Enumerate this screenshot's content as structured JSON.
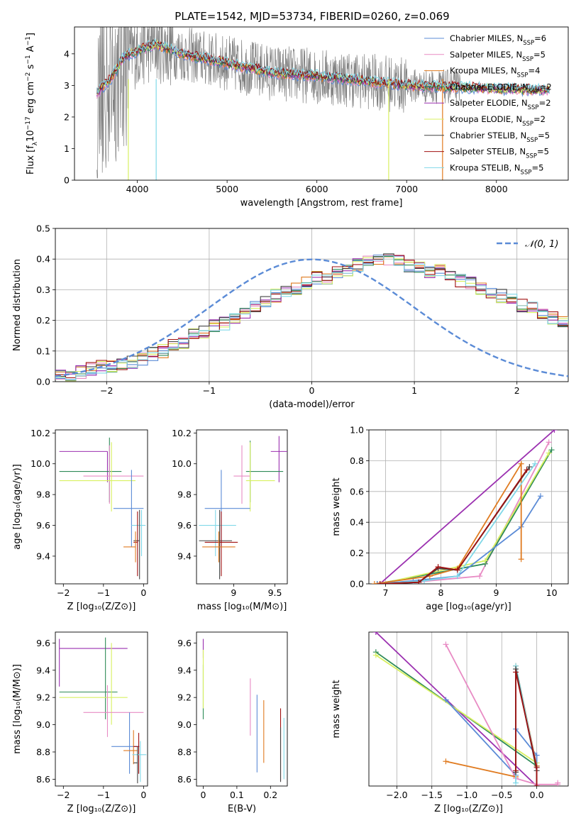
{
  "figure": {
    "title": "PLATE=1542, MJD=53734, FIBERID=0260, z=0.069"
  },
  "colors": {
    "data_spectrum": "#808080",
    "Chabrier MILES": "#5b8bd6",
    "Salpeter MILES": "#e88bc4",
    "Kroupa MILES": "#e07b20",
    "Chabrier ELODIE": "#2e8b57",
    "Salpeter ELODIE": "#9b30b0",
    "Kroupa ELODIE": "#d8f060",
    "Chabrier STELIB": "#444444",
    "Salpeter STELIB": "#a01010",
    "Kroupa STELIB": "#80d8e8",
    "normal_curve": "#5b8bd6"
  },
  "chart_data": [
    {
      "id": "spectrum",
      "type": "line",
      "xlabel": "wavelength [Angstrom, rest frame]",
      "ylabel_parts": [
        "Flux [f",
        "λ",
        "10",
        "−17",
        " erg cm",
        "−2",
        " s",
        "−1",
        " A",
        "−1",
        "]"
      ],
      "xlim": [
        3300,
        8800
      ],
      "ylim": [
        0,
        4.85
      ],
      "xticks": [
        4000,
        5000,
        6000,
        7000,
        8000
      ],
      "yticks": [
        0,
        1,
        2,
        3,
        4
      ],
      "legend_position": "upper-right",
      "legend": [
        {
          "label": "Chabrier MILES, N",
          "sub": "SSP",
          "suffix": "=6"
        },
        {
          "label": "Salpeter MILES, N",
          "sub": "SSP",
          "suffix": "=5"
        },
        {
          "label": "Kroupa MILES, N",
          "sub": "SSP",
          "suffix": "=4"
        },
        {
          "label": "Chabrier ELODIE, N",
          "sub": "SSP",
          "suffix": "=2"
        },
        {
          "label": "Salpeter ELODIE, N",
          "sub": "SSP",
          "suffix": "=2"
        },
        {
          "label": "Kroupa ELODIE, N",
          "sub": "SSP",
          "suffix": "=2"
        },
        {
          "label": "Chabrier STELIB, N",
          "sub": "SSP",
          "suffix": "=5"
        },
        {
          "label": "Salpeter STELIB, N",
          "sub": "SSP",
          "suffix": "=5"
        },
        {
          "label": "Kroupa STELIB, N",
          "sub": "SSP",
          "suffix": "=5"
        }
      ],
      "continuum_x": [
        3550,
        3700,
        3850,
        4000,
        4200,
        4500,
        5000,
        5500,
        6000,
        6500,
        7000,
        7500,
        8000,
        8500
      ],
      "continuum_y": [
        2.75,
        3.2,
        3.9,
        4.1,
        4.3,
        4.0,
        3.7,
        3.4,
        3.3,
        3.15,
        3.0,
        2.95,
        2.9,
        2.85
      ]
    },
    {
      "id": "residuals",
      "type": "step",
      "xlabel": "(data-model)/error",
      "ylabel": "Normed distribution",
      "xlim": [
        -2.5,
        2.5
      ],
      "ylim": [
        0,
        0.5
      ],
      "xticks": [
        -2,
        -1,
        0,
        1,
        2
      ],
      "yticks": [
        0.0,
        0.1,
        0.2,
        0.3,
        0.4,
        0.5
      ],
      "grid": true,
      "legend_position": "upper-right",
      "curve_label": "𝒩(0, 1)",
      "bin_width": 0.1,
      "bin_start": -2.5,
      "base_values": [
        0.03,
        0.02,
        0.03,
        0.04,
        0.05,
        0.05,
        0.06,
        0.065,
        0.07,
        0.09,
        0.1,
        0.12,
        0.13,
        0.15,
        0.16,
        0.18,
        0.19,
        0.2,
        0.22,
        0.24,
        0.26,
        0.28,
        0.3,
        0.3,
        0.32,
        0.34,
        0.34,
        0.36,
        0.36,
        0.38,
        0.4,
        0.4,
        0.4,
        0.39,
        0.38,
        0.37,
        0.36,
        0.36,
        0.34,
        0.33,
        0.32,
        0.3,
        0.29,
        0.28,
        0.27,
        0.25,
        0.24,
        0.22,
        0.21,
        0.2,
        0.19,
        0.18,
        0.17,
        0.16,
        0.15,
        0.14,
        0.13,
        0.12,
        0.11,
        0.1,
        0.1,
        0.09,
        0.08,
        0.07,
        0.07,
        0.06,
        0.05,
        0.05,
        0.05,
        0.04,
        0.04,
        0.04,
        0.04,
        0.03,
        0.03
      ]
    },
    {
      "id": "age_vs_Z",
      "type": "errorbar",
      "xlabel": "Z [log₁₀(Z/Z⊙)]",
      "ylabel": "age  [log₁₀(age/yr)]",
      "xlim": [
        -2.2,
        0.1
      ],
      "ylim": [
        9.22,
        10.22
      ],
      "xticks": [
        -2,
        -1,
        0
      ],
      "yticks": [
        9.4,
        9.6,
        9.8,
        10.0,
        10.2
      ],
      "points": [
        {
          "model": "Salpeter ELODIE",
          "x": -0.9,
          "xerr": [
            1.2,
            0.0
          ],
          "y": 10.08,
          "yerr": [
            0.2,
            0.0
          ]
        },
        {
          "model": "Chabrier ELODIE",
          "x": -0.85,
          "xerr": [
            1.25,
            0.3
          ],
          "y": 9.95,
          "yerr": [
            0.2,
            0.22
          ]
        },
        {
          "model": "Salpeter MILES",
          "x": -0.85,
          "xerr": [
            0.65,
            0.85
          ],
          "y": 9.92,
          "yerr": [
            0.18,
            0.2
          ]
        },
        {
          "model": "Kroupa ELODIE",
          "x": -0.8,
          "xerr": [
            1.3,
            0.6
          ],
          "y": 9.89,
          "yerr": [
            0.2,
            0.25
          ]
        },
        {
          "model": "Chabrier MILES",
          "x": -0.3,
          "xerr": [
            0.45,
            0.3
          ],
          "y": 9.71,
          "yerr": [
            0.25,
            0.25
          ]
        },
        {
          "model": "Kroupa STELIB",
          "x": -0.05,
          "xerr": [
            0.25,
            0.1
          ],
          "y": 9.6,
          "yerr": [
            0.2,
            0.1
          ]
        },
        {
          "model": "Chabrier STELIB",
          "x": -0.1,
          "xerr": [
            0.15,
            0.0
          ],
          "y": 9.5,
          "yerr": [
            0.25,
            0.2
          ]
        },
        {
          "model": "Salpeter STELIB",
          "x": -0.15,
          "xerr": [
            0.1,
            0.0
          ],
          "y": 9.49,
          "yerr": [
            0.22,
            0.2
          ]
        },
        {
          "model": "Kroupa MILES",
          "x": -0.2,
          "xerr": [
            0.3,
            0.0
          ],
          "y": 9.46,
          "yerr": [
            0.1,
            0.1
          ]
        }
      ]
    },
    {
      "id": "age_vs_mass",
      "type": "errorbar",
      "xlabel": "mass [log₁₀(M/M⊙)]",
      "ylabel": "",
      "xlim": [
        8.55,
        9.65
      ],
      "ylim": [
        9.22,
        10.22
      ],
      "xticks": [
        9.0,
        9.5
      ],
      "yticks": [
        9.4,
        9.6,
        9.8,
        10.0,
        10.2
      ],
      "points": [
        {
          "model": "Salpeter ELODIE",
          "x": 9.55,
          "xerr": [
            0.1,
            0.1
          ],
          "y": 10.08,
          "yerr": [
            0.2,
            0.1
          ]
        },
        {
          "model": "Chabrier ELODIE",
          "x": 9.2,
          "xerr": [
            0.05,
            0.4
          ],
          "y": 9.95,
          "yerr": [
            0.2,
            0.2
          ]
        },
        {
          "model": "Salpeter MILES",
          "x": 9.1,
          "xerr": [
            0.1,
            0.1
          ],
          "y": 9.92,
          "yerr": [
            0.18,
            0.2
          ]
        },
        {
          "model": "Kroupa ELODIE",
          "x": 9.2,
          "xerr": [
            0.05,
            0.3
          ],
          "y": 9.89,
          "yerr": [
            0.2,
            0.25
          ]
        },
        {
          "model": "Chabrier MILES",
          "x": 8.85,
          "xerr": [
            0.2,
            0.35
          ],
          "y": 9.71,
          "yerr": [
            0.25,
            0.25
          ]
        },
        {
          "model": "Kroupa STELIB",
          "x": 8.78,
          "xerr": [
            0.2,
            0.25
          ],
          "y": 9.6,
          "yerr": [
            0.2,
            0.1
          ]
        },
        {
          "model": "Chabrier STELIB",
          "x": 8.83,
          "xerr": [
            0.25,
            0.15
          ],
          "y": 9.5,
          "yerr": [
            0.25,
            0.2
          ]
        },
        {
          "model": "Salpeter STELIB",
          "x": 8.85,
          "xerr": [
            0.2,
            0.2
          ],
          "y": 9.49,
          "yerr": [
            0.22,
            0.2
          ]
        },
        {
          "model": "Kroupa MILES",
          "x": 8.82,
          "xerr": [
            0.2,
            0.2
          ],
          "y": 9.46,
          "yerr": [
            0.1,
            0.1
          ]
        }
      ]
    },
    {
      "id": "cumulative_age",
      "type": "line",
      "xlabel": "age  [log₁₀(age/yr)]",
      "ylabel": "mass weight",
      "xlim": [
        6.7,
        10.3
      ],
      "ylim": [
        0,
        1.0
      ],
      "xticks": [
        7,
        8,
        9,
        10
      ],
      "yticks": [
        0.0,
        0.2,
        0.4,
        0.6,
        0.8,
        1.0
      ],
      "grid": true,
      "series": [
        {
          "model": "Salpeter ELODIE",
          "x": [
            6.9,
            10.05
          ],
          "y": [
            0.0,
            1.0
          ]
        },
        {
          "model": "Salpeter MILES",
          "x": [
            6.85,
            7.5,
            8.7,
            9.95
          ],
          "y": [
            0.0,
            0.01,
            0.05,
            0.92
          ]
        },
        {
          "model": "Chabrier ELODIE",
          "x": [
            6.85,
            8.8,
            10.0
          ],
          "y": [
            0.0,
            0.13,
            0.87
          ]
        },
        {
          "model": "Kroupa ELODIE",
          "x": [
            6.9,
            8.8,
            9.95
          ],
          "y": [
            0.0,
            0.15,
            0.85
          ]
        },
        {
          "model": "Chabrier MILES",
          "x": [
            6.85,
            7.5,
            8.3,
            9.45,
            9.8
          ],
          "y": [
            0.0,
            0.02,
            0.05,
            0.37,
            0.57
          ]
        },
        {
          "model": "Kroupa MILES",
          "x": [
            6.8,
            7.8,
            8.3,
            9.45,
            9.45
          ],
          "y": [
            0.0,
            0.05,
            0.1,
            0.78,
            0.16
          ]
        },
        {
          "model": "Kroupa STELIB",
          "x": [
            6.9,
            7.7,
            8.3,
            9.7
          ],
          "y": [
            0.0,
            0.02,
            0.05,
            0.78
          ]
        },
        {
          "model": "Chabrier STELIB",
          "x": [
            6.9,
            7.6,
            7.95,
            8.3,
            9.6
          ],
          "y": [
            0.0,
            0.01,
            0.1,
            0.09,
            0.76
          ]
        },
        {
          "model": "Salpeter STELIB",
          "x": [
            6.9,
            7.6,
            7.95,
            8.3,
            9.55
          ],
          "y": [
            0.0,
            0.01,
            0.11,
            0.09,
            0.74
          ]
        }
      ]
    },
    {
      "id": "mass_vs_Z",
      "type": "errorbar",
      "xlabel": "Z [log₁₀(Z/Z⊙)]",
      "ylabel": "mass [log₁₀(M/M⊙)]",
      "xlim": [
        -2.2,
        0.1
      ],
      "ylim": [
        8.55,
        9.68
      ],
      "xticks": [
        -2,
        -1,
        0
      ],
      "yticks": [
        8.6,
        8.8,
        9.0,
        9.2,
        9.4,
        9.6
      ],
      "points": [
        {
          "model": "Salpeter ELODIE",
          "x": -2.1,
          "xerr": [
            0.0,
            1.7
          ],
          "y": 9.56,
          "yerr": [
            0.28,
            0.07
          ]
        },
        {
          "model": "Chabrier ELODIE",
          "x": -0.95,
          "xerr": [
            1.15,
            0.3
          ],
          "y": 9.24,
          "yerr": [
            0.2,
            0.4
          ]
        },
        {
          "model": "Kroupa ELODIE",
          "x": -0.8,
          "xerr": [
            1.3,
            0.4
          ],
          "y": 9.2,
          "yerr": [
            0.2,
            0.4
          ]
        },
        {
          "model": "Salpeter MILES",
          "x": -0.9,
          "xerr": [
            0.6,
            0.9
          ],
          "y": 9.09,
          "yerr": [
            0.18,
            0.2
          ]
        },
        {
          "model": "Chabrier MILES",
          "x": -0.35,
          "xerr": [
            0.45,
            0.25
          ],
          "y": 8.84,
          "yerr": [
            0.2,
            0.25
          ]
        },
        {
          "model": "Kroupa MILES",
          "x": -0.25,
          "xerr": [
            0.25,
            0.1
          ],
          "y": 8.81,
          "yerr": [
            0.1,
            0.15
          ]
        },
        {
          "model": "Salpeter STELIB",
          "x": -0.12,
          "xerr": [
            0.13,
            0.0
          ],
          "y": 8.84,
          "yerr": [
            0.2,
            0.1
          ]
        },
        {
          "model": "Kroupa STELIB",
          "x": -0.08,
          "xerr": [
            0.2,
            0.15
          ],
          "y": 8.78,
          "yerr": [
            0.2,
            0.1
          ]
        },
        {
          "model": "Chabrier STELIB",
          "x": -0.15,
          "xerr": [
            0.1,
            0.0
          ],
          "y": 8.72,
          "yerr": [
            0.15,
            0.12
          ]
        }
      ]
    },
    {
      "id": "mass_vs_EBV",
      "type": "errorbar",
      "xlabel": "E(B-V)",
      "ylabel": "",
      "xlim": [
        -0.02,
        0.25
      ],
      "ylim": [
        8.55,
        9.68
      ],
      "xticks": [
        0.0,
        0.1,
        0.2
      ],
      "yticks": [
        8.6,
        8.8,
        9.0,
        9.2,
        9.4,
        9.6
      ],
      "points": [
        {
          "model": "Salpeter ELODIE",
          "x": 0.0,
          "y": 9.56,
          "yerr": [
            0.07,
            0.07
          ]
        },
        {
          "model": "Chabrier ELODIE",
          "x": 0.0,
          "y": 9.24,
          "yerr": [
            0.2,
            0.2
          ]
        },
        {
          "model": "Kroupa ELODIE",
          "x": 0.0,
          "y": 9.2,
          "yerr": [
            0.08,
            0.35
          ]
        },
        {
          "model": "Salpeter MILES",
          "x": 0.14,
          "y": 9.09,
          "yerr": [
            0.17,
            0.25
          ]
        },
        {
          "model": "Chabrier MILES",
          "x": 0.16,
          "y": 8.95,
          "yerr": [
            0.3,
            0.27
          ]
        },
        {
          "model": "Kroupa MILES",
          "x": 0.18,
          "y": 8.95,
          "yerr": [
            0.23,
            0.23
          ]
        },
        {
          "model": "Salpeter STELIB",
          "x": 0.23,
          "y": 8.84,
          "yerr": [
            0.25,
            0.28
          ]
        },
        {
          "model": "Chabrier STELIB",
          "x": 0.23,
          "y": 8.78,
          "yerr": [
            0.2,
            0.2
          ]
        },
        {
          "model": "Kroupa STELIB",
          "x": 0.24,
          "y": 8.82,
          "yerr": [
            0.22,
            0.23
          ]
        }
      ]
    },
    {
      "id": "cumulative_Z",
      "type": "line",
      "xlabel": "Z [log₁₀(Z/Z⊙)]",
      "ylabel": "mass weight",
      "xlim": [
        -2.4,
        0.45
      ],
      "ylim": [
        0,
        1.0
      ],
      "xticks": [
        -2.0,
        -1.5,
        -1.0,
        -0.5,
        0.0
      ],
      "tick_labels": [
        "−2.0",
        "−1.5",
        "−1.0",
        "−0.5",
        "0.0"
      ],
      "grid": true,
      "series": [
        {
          "model": "Salpeter ELODIE",
          "x": [
            -2.3,
            0.0,
            0.0
          ],
          "y": [
            1.0,
            0.0,
            0.0
          ]
        },
        {
          "model": "Chabrier ELODIE",
          "x": [
            -2.3,
            0.0,
            0.0
          ],
          "y": [
            0.87,
            0.13,
            0.0
          ]
        },
        {
          "model": "Kroupa ELODIE",
          "x": [
            -2.3,
            0.0,
            0.0
          ],
          "y": [
            0.85,
            0.15,
            0.0
          ]
        },
        {
          "model": "Chabrier MILES",
          "x": [
            -1.3,
            -0.3,
            -0.3,
            0.0,
            0.0
          ],
          "y": [
            0.56,
            0.07,
            0.37,
            0.2,
            0.0
          ]
        },
        {
          "model": "Salpeter MILES",
          "x": [
            -1.3,
            -0.3,
            0.0,
            0.3,
            0.3
          ],
          "y": [
            0.92,
            0.05,
            0.01,
            0.01,
            0.02
          ]
        },
        {
          "model": "Kroupa MILES",
          "x": [
            -1.3,
            -0.3,
            -0.3,
            0.0,
            0.0
          ],
          "y": [
            0.16,
            0.06,
            0.78,
            0.13,
            0.0
          ]
        },
        {
          "model": "Kroupa STELIB",
          "x": [
            -0.3,
            -0.3,
            0.0,
            0.0
          ],
          "y": [
            0.02,
            0.78,
            0.12,
            0.0
          ]
        },
        {
          "model": "Chabrier STELIB",
          "x": [
            -0.3,
            -0.3,
            0.0,
            0.0
          ],
          "y": [
            0.09,
            0.76,
            0.1,
            0.0
          ]
        },
        {
          "model": "Salpeter STELIB",
          "x": [
            -0.3,
            -0.3,
            0.0,
            0.0
          ],
          "y": [
            0.1,
            0.74,
            0.12,
            0.0
          ]
        }
      ]
    }
  ]
}
